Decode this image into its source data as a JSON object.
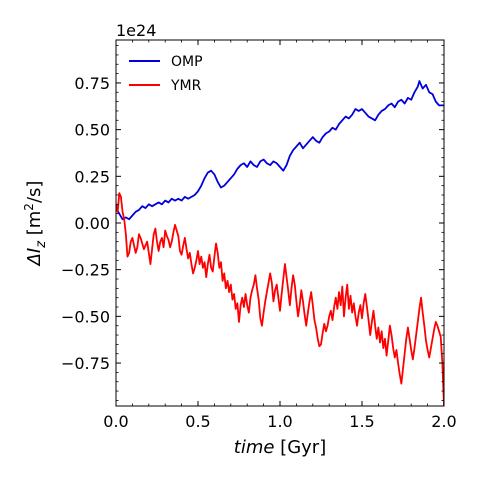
{
  "chart_data": {
    "type": "line",
    "title": "",
    "xlabel_italic": "time",
    "xlabel_unit": "[Gyr]",
    "ylabel_main": "ΔI",
    "ylabel_sub": "z",
    "ylabel_unit_open": "[m",
    "ylabel_unit_sup": "2",
    "ylabel_unit_close": "/s]",
    "y_exponent": "1e24",
    "xlim": [
      0.0,
      2.0
    ],
    "ylim": [
      -0.98,
      0.98
    ],
    "x_ticks": [
      0.0,
      0.5,
      1.0,
      1.5,
      2.0
    ],
    "x_tick_labels": [
      "0.0",
      "0.5",
      "1.0",
      "1.5",
      "2.0"
    ],
    "y_ticks": [
      -0.75,
      -0.5,
      -0.25,
      0.0,
      0.25,
      0.5,
      0.75
    ],
    "y_tick_labels": [
      "−0.75",
      "−0.50",
      "−0.25",
      "0.00",
      "0.25",
      "0.50",
      "0.75"
    ],
    "legend_position": "top-left",
    "series": [
      {
        "name": "OMP",
        "color": "#0000dd",
        "points": [
          [
            0.0,
            0.08
          ],
          [
            0.02,
            0.05
          ],
          [
            0.04,
            0.02
          ],
          [
            0.06,
            0.03
          ],
          [
            0.08,
            0.02
          ],
          [
            0.1,
            0.04
          ],
          [
            0.12,
            0.06
          ],
          [
            0.14,
            0.07
          ],
          [
            0.16,
            0.09
          ],
          [
            0.18,
            0.08
          ],
          [
            0.2,
            0.1
          ],
          [
            0.22,
            0.09
          ],
          [
            0.24,
            0.1
          ],
          [
            0.26,
            0.11
          ],
          [
            0.28,
            0.1
          ],
          [
            0.3,
            0.12
          ],
          [
            0.32,
            0.11
          ],
          [
            0.34,
            0.13
          ],
          [
            0.36,
            0.12
          ],
          [
            0.38,
            0.13
          ],
          [
            0.4,
            0.12
          ],
          [
            0.42,
            0.14
          ],
          [
            0.44,
            0.13
          ],
          [
            0.46,
            0.14
          ],
          [
            0.48,
            0.15
          ],
          [
            0.5,
            0.17
          ],
          [
            0.52,
            0.2
          ],
          [
            0.54,
            0.24
          ],
          [
            0.56,
            0.27
          ],
          [
            0.58,
            0.28
          ],
          [
            0.6,
            0.26
          ],
          [
            0.62,
            0.22
          ],
          [
            0.64,
            0.19
          ],
          [
            0.66,
            0.2
          ],
          [
            0.68,
            0.22
          ],
          [
            0.7,
            0.24
          ],
          [
            0.72,
            0.26
          ],
          [
            0.74,
            0.29
          ],
          [
            0.76,
            0.31
          ],
          [
            0.78,
            0.32
          ],
          [
            0.8,
            0.3
          ],
          [
            0.82,
            0.33
          ],
          [
            0.84,
            0.31
          ],
          [
            0.86,
            0.3
          ],
          [
            0.88,
            0.33
          ],
          [
            0.9,
            0.34
          ],
          [
            0.92,
            0.32
          ],
          [
            0.94,
            0.31
          ],
          [
            0.96,
            0.33
          ],
          [
            0.98,
            0.32
          ],
          [
            1.0,
            0.3
          ],
          [
            1.02,
            0.28
          ],
          [
            1.04,
            0.31
          ],
          [
            1.06,
            0.36
          ],
          [
            1.08,
            0.39
          ],
          [
            1.1,
            0.41
          ],
          [
            1.12,
            0.43
          ],
          [
            1.14,
            0.4
          ],
          [
            1.16,
            0.42
          ],
          [
            1.18,
            0.44
          ],
          [
            1.2,
            0.46
          ],
          [
            1.22,
            0.44
          ],
          [
            1.24,
            0.43
          ],
          [
            1.26,
            0.46
          ],
          [
            1.28,
            0.48
          ],
          [
            1.3,
            0.49
          ],
          [
            1.32,
            0.51
          ],
          [
            1.34,
            0.5
          ],
          [
            1.36,
            0.53
          ],
          [
            1.38,
            0.55
          ],
          [
            1.4,
            0.57
          ],
          [
            1.42,
            0.56
          ],
          [
            1.44,
            0.58
          ],
          [
            1.46,
            0.61
          ],
          [
            1.48,
            0.6
          ],
          [
            1.5,
            0.61
          ],
          [
            1.52,
            0.59
          ],
          [
            1.54,
            0.57
          ],
          [
            1.56,
            0.56
          ],
          [
            1.58,
            0.55
          ],
          [
            1.6,
            0.58
          ],
          [
            1.62,
            0.6
          ],
          [
            1.64,
            0.61
          ],
          [
            1.66,
            0.63
          ],
          [
            1.68,
            0.64
          ],
          [
            1.7,
            0.62
          ],
          [
            1.72,
            0.65
          ],
          [
            1.74,
            0.66
          ],
          [
            1.76,
            0.64
          ],
          [
            1.78,
            0.67
          ],
          [
            1.8,
            0.66
          ],
          [
            1.82,
            0.7
          ],
          [
            1.84,
            0.73
          ],
          [
            1.85,
            0.76
          ],
          [
            1.87,
            0.72
          ],
          [
            1.89,
            0.74
          ],
          [
            1.91,
            0.7
          ],
          [
            1.93,
            0.69
          ],
          [
            1.95,
            0.65
          ],
          [
            1.97,
            0.63
          ],
          [
            2.0,
            0.63
          ]
        ]
      },
      {
        "name": "YMR",
        "color": "#ff0000",
        "points": [
          [
            0.0,
            0.1
          ],
          [
            0.01,
            0.06
          ],
          [
            0.02,
            0.16
          ],
          [
            0.03,
            0.14
          ],
          [
            0.04,
            0.06
          ],
          [
            0.05,
            0.02
          ],
          [
            0.06,
            -0.06
          ],
          [
            0.07,
            -0.18
          ],
          [
            0.08,
            -0.16
          ],
          [
            0.09,
            -0.1
          ],
          [
            0.1,
            -0.08
          ],
          [
            0.11,
            -0.12
          ],
          [
            0.12,
            -0.16
          ],
          [
            0.13,
            -0.13
          ],
          [
            0.14,
            -0.06
          ],
          [
            0.15,
            -0.08
          ],
          [
            0.16,
            -0.11
          ],
          [
            0.17,
            -0.14
          ],
          [
            0.18,
            -0.12
          ],
          [
            0.19,
            -0.1
          ],
          [
            0.2,
            -0.16
          ],
          [
            0.21,
            -0.22
          ],
          [
            0.22,
            -0.14
          ],
          [
            0.23,
            -0.06
          ],
          [
            0.24,
            -0.03
          ],
          [
            0.25,
            -0.1
          ],
          [
            0.26,
            -0.15
          ],
          [
            0.27,
            -0.1
          ],
          [
            0.28,
            -0.08
          ],
          [
            0.29,
            -0.13
          ],
          [
            0.3,
            -0.04
          ],
          [
            0.31,
            -0.07
          ],
          [
            0.32,
            -0.09
          ],
          [
            0.33,
            -0.13
          ],
          [
            0.34,
            -0.1
          ],
          [
            0.35,
            -0.05
          ],
          [
            0.36,
            -0.01
          ],
          [
            0.37,
            -0.04
          ],
          [
            0.38,
            -0.07
          ],
          [
            0.39,
            -0.15
          ],
          [
            0.4,
            -0.17
          ],
          [
            0.41,
            -0.12
          ],
          [
            0.42,
            -0.08
          ],
          [
            0.43,
            -0.14
          ],
          [
            0.44,
            -0.19
          ],
          [
            0.45,
            -0.16
          ],
          [
            0.46,
            -0.22
          ],
          [
            0.47,
            -0.27
          ],
          [
            0.48,
            -0.24
          ],
          [
            0.49,
            -0.2
          ],
          [
            0.5,
            -0.15
          ],
          [
            0.51,
            -0.22
          ],
          [
            0.52,
            -0.18
          ],
          [
            0.53,
            -0.24
          ],
          [
            0.54,
            -0.21
          ],
          [
            0.55,
            -0.29
          ],
          [
            0.56,
            -0.22
          ],
          [
            0.57,
            -0.17
          ],
          [
            0.58,
            -0.24
          ],
          [
            0.59,
            -0.26
          ],
          [
            0.6,
            -0.18
          ],
          [
            0.61,
            -0.11
          ],
          [
            0.62,
            -0.16
          ],
          [
            0.63,
            -0.24
          ],
          [
            0.64,
            -0.21
          ],
          [
            0.65,
            -0.31
          ],
          [
            0.66,
            -0.27
          ],
          [
            0.67,
            -0.35
          ],
          [
            0.68,
            -0.31
          ],
          [
            0.69,
            -0.37
          ],
          [
            0.7,
            -0.33
          ],
          [
            0.71,
            -0.41
          ],
          [
            0.72,
            -0.38
          ],
          [
            0.73,
            -0.46
          ],
          [
            0.74,
            -0.43
          ],
          [
            0.75,
            -0.53
          ],
          [
            0.76,
            -0.44
          ],
          [
            0.77,
            -0.4
          ],
          [
            0.78,
            -0.45
          ],
          [
            0.79,
            -0.38
          ],
          [
            0.8,
            -0.44
          ],
          [
            0.81,
            -0.48
          ],
          [
            0.82,
            -0.4
          ],
          [
            0.83,
            -0.36
          ],
          [
            0.84,
            -0.33
          ],
          [
            0.85,
            -0.28
          ],
          [
            0.86,
            -0.35
          ],
          [
            0.87,
            -0.41
          ],
          [
            0.88,
            -0.51
          ],
          [
            0.89,
            -0.55
          ],
          [
            0.9,
            -0.48
          ],
          [
            0.91,
            -0.42
          ],
          [
            0.92,
            -0.37
          ],
          [
            0.93,
            -0.32
          ],
          [
            0.94,
            -0.27
          ],
          [
            0.95,
            -0.32
          ],
          [
            0.96,
            -0.42
          ],
          [
            0.97,
            -0.36
          ],
          [
            0.98,
            -0.33
          ],
          [
            0.99,
            -0.4
          ],
          [
            1.0,
            -0.47
          ],
          [
            1.01,
            -0.38
          ],
          [
            1.02,
            -0.3
          ],
          [
            1.03,
            -0.22
          ],
          [
            1.04,
            -0.29
          ],
          [
            1.05,
            -0.36
          ],
          [
            1.06,
            -0.44
          ],
          [
            1.07,
            -0.35
          ],
          [
            1.08,
            -0.28
          ],
          [
            1.09,
            -0.33
          ],
          [
            1.1,
            -0.42
          ],
          [
            1.11,
            -0.5
          ],
          [
            1.12,
            -0.44
          ],
          [
            1.13,
            -0.36
          ],
          [
            1.14,
            -0.42
          ],
          [
            1.15,
            -0.49
          ],
          [
            1.16,
            -0.55
          ],
          [
            1.17,
            -0.48
          ],
          [
            1.18,
            -0.42
          ],
          [
            1.19,
            -0.37
          ],
          [
            1.2,
            -0.44
          ],
          [
            1.21,
            -0.52
          ],
          [
            1.22,
            -0.56
          ],
          [
            1.23,
            -0.62
          ],
          [
            1.24,
            -0.66
          ],
          [
            1.25,
            -0.65
          ],
          [
            1.26,
            -0.59
          ],
          [
            1.27,
            -0.54
          ],
          [
            1.28,
            -0.58
          ],
          [
            1.29,
            -0.55
          ],
          [
            1.3,
            -0.5
          ],
          [
            1.31,
            -0.47
          ],
          [
            1.32,
            -0.52
          ],
          [
            1.33,
            -0.45
          ],
          [
            1.34,
            -0.4
          ],
          [
            1.35,
            -0.46
          ],
          [
            1.36,
            -0.37
          ],
          [
            1.37,
            -0.44
          ],
          [
            1.38,
            -0.34
          ],
          [
            1.39,
            -0.5
          ],
          [
            1.4,
            -0.4
          ],
          [
            1.41,
            -0.33
          ],
          [
            1.42,
            -0.46
          ],
          [
            1.43,
            -0.39
          ],
          [
            1.44,
            -0.48
          ],
          [
            1.45,
            -0.43
          ],
          [
            1.46,
            -0.5
          ],
          [
            1.47,
            -0.55
          ],
          [
            1.48,
            -0.48
          ],
          [
            1.49,
            -0.44
          ],
          [
            1.5,
            -0.51
          ],
          [
            1.51,
            -0.43
          ],
          [
            1.52,
            -0.38
          ],
          [
            1.53,
            -0.45
          ],
          [
            1.54,
            -0.52
          ],
          [
            1.55,
            -0.6
          ],
          [
            1.56,
            -0.53
          ],
          [
            1.57,
            -0.47
          ],
          [
            1.58,
            -0.55
          ],
          [
            1.59,
            -0.62
          ],
          [
            1.6,
            -0.56
          ],
          [
            1.61,
            -0.64
          ],
          [
            1.62,
            -0.58
          ],
          [
            1.63,
            -0.67
          ],
          [
            1.64,
            -0.62
          ],
          [
            1.65,
            -0.71
          ],
          [
            1.66,
            -0.63
          ],
          [
            1.67,
            -0.55
          ],
          [
            1.68,
            -0.6
          ],
          [
            1.69,
            -0.67
          ],
          [
            1.7,
            -0.72
          ],
          [
            1.71,
            -0.68
          ],
          [
            1.72,
            -0.75
          ],
          [
            1.73,
            -0.81
          ],
          [
            1.74,
            -0.86
          ],
          [
            1.75,
            -0.78
          ],
          [
            1.76,
            -0.7
          ],
          [
            1.77,
            -0.62
          ],
          [
            1.78,
            -0.56
          ],
          [
            1.79,
            -0.62
          ],
          [
            1.8,
            -0.68
          ],
          [
            1.81,
            -0.73
          ],
          [
            1.82,
            -0.67
          ],
          [
            1.83,
            -0.6
          ],
          [
            1.84,
            -0.53
          ],
          [
            1.85,
            -0.46
          ],
          [
            1.86,
            -0.4
          ],
          [
            1.87,
            -0.48
          ],
          [
            1.88,
            -0.55
          ],
          [
            1.89,
            -0.63
          ],
          [
            1.9,
            -0.68
          ],
          [
            1.91,
            -0.72
          ],
          [
            1.92,
            -0.67
          ],
          [
            1.93,
            -0.62
          ],
          [
            1.94,
            -0.57
          ],
          [
            1.95,
            -0.53
          ],
          [
            1.96,
            -0.55
          ],
          [
            1.97,
            -0.58
          ],
          [
            1.98,
            -0.61
          ],
          [
            1.99,
            -0.75
          ],
          [
            2.0,
            -0.98
          ]
        ]
      }
    ]
  }
}
